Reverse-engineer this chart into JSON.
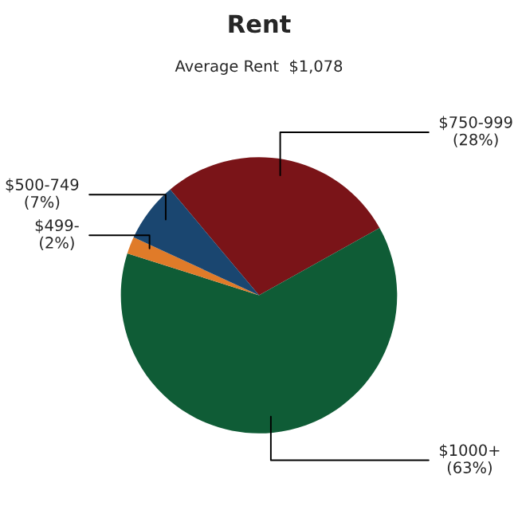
{
  "chart_data": {
    "type": "pie",
    "title": "Rent",
    "subtitle": "Average Rent  $1,078",
    "categories": [
      "$750-999",
      "$1000+",
      "$499-",
      "$500-749"
    ],
    "values": [
      28,
      63,
      2,
      7
    ],
    "value_labels": [
      "(28%)",
      "(63%)",
      "(2%)",
      "(7%)"
    ],
    "colors": [
      "#7a1418",
      "#0f5c36",
      "#e07b29",
      "#1a4670"
    ]
  }
}
